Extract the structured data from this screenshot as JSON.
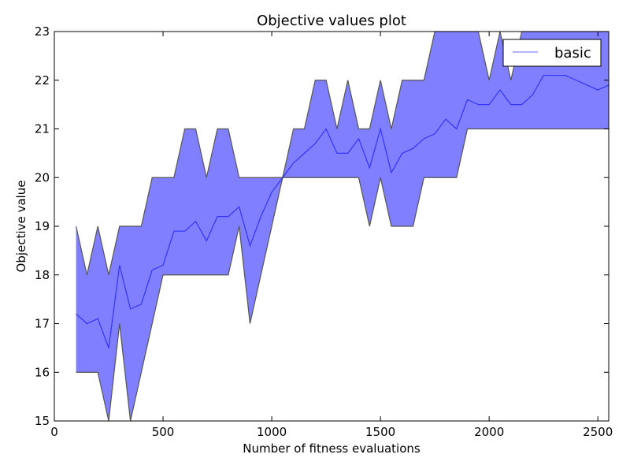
{
  "chart_data": {
    "type": "area",
    "title": "Objective values plot",
    "xlabel": "Number of fitness evaluations",
    "ylabel": "Objective value",
    "xlim": [
      0,
      2550
    ],
    "ylim": [
      15,
      23
    ],
    "xticks": [
      0,
      500,
      1000,
      1500,
      2000,
      2500
    ],
    "yticks": [
      15,
      16,
      17,
      18,
      19,
      20,
      21,
      22,
      23
    ],
    "grid": false,
    "legend_position": "top-right",
    "series": [
      {
        "name": "basic",
        "color": "#0000ff",
        "x": [
          100,
          150,
          200,
          250,
          300,
          350,
          400,
          450,
          500,
          550,
          600,
          650,
          700,
          750,
          800,
          850,
          900,
          950,
          1000,
          1050,
          1100,
          1150,
          1200,
          1250,
          1300,
          1350,
          1400,
          1450,
          1500,
          1550,
          1600,
          1650,
          1700,
          1750,
          1800,
          1850,
          1900,
          1950,
          2000,
          2050,
          2100,
          2150,
          2200,
          2250,
          2300,
          2350,
          2400,
          2450,
          2500,
          2550
        ],
        "mean": [
          17.2,
          17.0,
          17.1,
          16.5,
          18.2,
          17.3,
          17.4,
          18.1,
          18.2,
          18.9,
          18.9,
          19.1,
          18.7,
          19.2,
          19.2,
          19.4,
          18.6,
          19.2,
          19.7,
          20.0,
          20.3,
          20.5,
          20.7,
          21.0,
          20.5,
          20.5,
          20.8,
          20.2,
          21.0,
          20.1,
          20.5,
          20.6,
          20.8,
          20.9,
          21.2,
          21.0,
          21.6,
          21.5,
          21.5,
          21.8,
          21.5,
          21.5,
          21.7,
          22.1,
          22.1,
          22.1,
          22.0,
          21.9,
          21.8,
          21.9
        ],
        "upper": [
          19,
          18,
          19,
          18,
          19,
          19,
          19,
          20,
          20,
          20,
          21,
          21,
          20,
          21,
          21,
          20,
          20,
          20,
          20,
          20,
          21,
          21,
          22,
          22,
          21,
          22,
          21,
          21,
          22,
          21,
          22,
          22,
          22,
          23,
          23,
          23,
          23,
          23,
          22,
          23,
          22,
          23,
          23,
          23,
          23,
          23,
          23,
          23,
          23,
          23
        ],
        "lower": [
          16,
          16,
          16,
          15,
          17,
          15,
          16,
          17,
          18,
          18,
          18,
          18,
          18,
          18,
          18,
          19,
          17,
          18,
          19,
          20,
          20,
          20,
          20,
          20,
          20,
          20,
          20,
          19,
          20,
          19,
          19,
          19,
          20,
          20,
          20,
          20,
          21,
          21,
          21,
          21,
          21,
          21,
          21,
          21,
          21,
          21,
          21,
          21,
          21,
          21
        ]
      }
    ]
  }
}
